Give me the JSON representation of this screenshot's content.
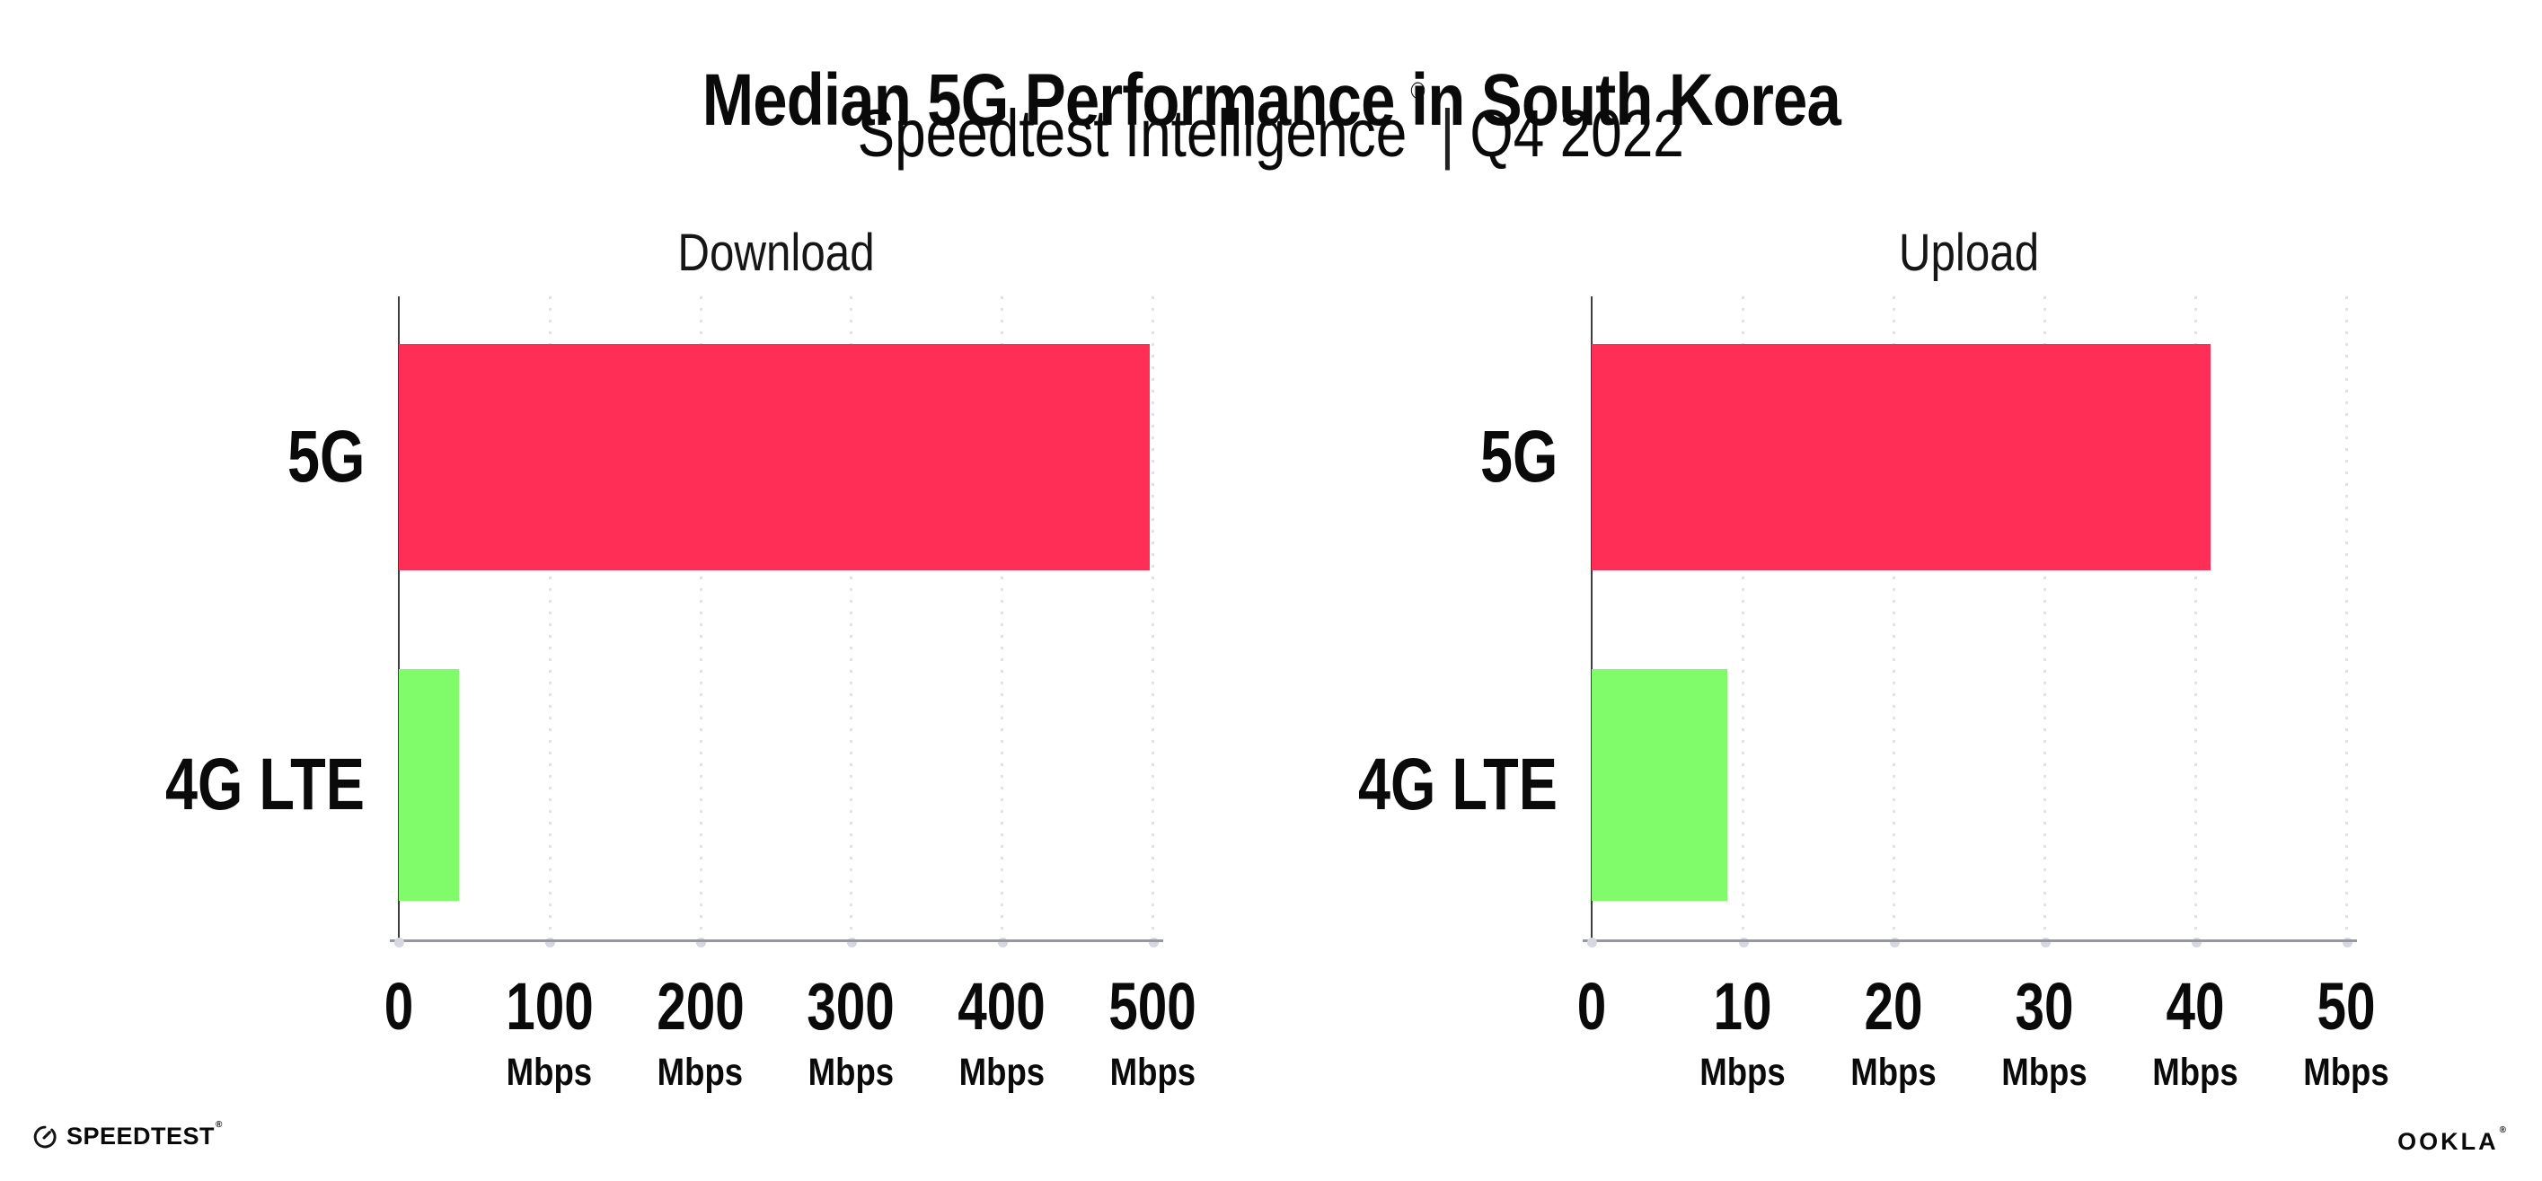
{
  "header": {
    "title": "Median 5G Performance in South Korea",
    "subtitle": {
      "brand": "Speedtest Intelligence",
      "registered_mark": "®",
      "separator": "|",
      "period": "Q4 2022"
    }
  },
  "chart_data": [
    {
      "type": "bar",
      "orientation": "horizontal",
      "title": "Download",
      "categories": [
        "5G",
        "4G LTE"
      ],
      "values": [
        498,
        40
      ],
      "unit": "Mbps",
      "xlim": [
        0,
        500
      ],
      "xticks": [
        0,
        100,
        200,
        300,
        400,
        500
      ],
      "bar_colors": [
        "#ff2e56",
        "#80fb69"
      ],
      "grid": "vertical-dotted",
      "legend": "none"
    },
    {
      "type": "bar",
      "orientation": "horizontal",
      "title": "Upload",
      "categories": [
        "5G",
        "4G LTE"
      ],
      "values": [
        41,
        9
      ],
      "unit": "Mbps",
      "xlim": [
        0,
        50
      ],
      "xticks": [
        0,
        10,
        20,
        30,
        40,
        50
      ],
      "bar_colors": [
        "#ff2e56",
        "#80fb69"
      ],
      "grid": "vertical-dotted",
      "legend": "none"
    }
  ],
  "footer": {
    "speedtest_wordmark": "SPEEDTEST",
    "speedtest_registered_mark": "®",
    "ookla_wordmark": "OOKLA",
    "ookla_registered_mark": "®"
  }
}
